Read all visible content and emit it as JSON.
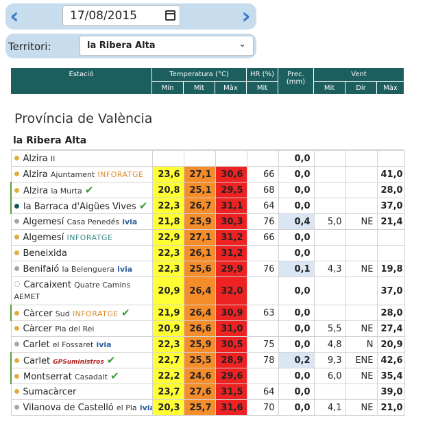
{
  "date_picker": {
    "value": "17/08/2015",
    "prev_icon": "chevron-left-icon",
    "next_icon": "chevron-right-icon",
    "calendar_icon": "calendar-icon"
  },
  "territory": {
    "label": "Territori:",
    "value": "la Ribera Alta",
    "dropdown_icon": "chevron-down-icon"
  },
  "headers": {
    "estacio": "Estació",
    "temperatura": "Temperatura (°C)",
    "hr": "HR (%)",
    "prec": "Prec. (mm)",
    "vent": "Vent",
    "min": "Mín",
    "mit": "Mit",
    "max": "Màx",
    "hr_mit": "Mit",
    "vent_mit": "Mit",
    "vent_dir": "Dir",
    "vent_max": "Màx"
  },
  "province": "Província de València",
  "comarca": "la Ribera Alta",
  "colors": {
    "header_bg": "#1d5f5f",
    "min_bg": "#ffff33",
    "mit_bg": "#f58d2b",
    "max_bg": "#ee2222",
    "dot_orange": "#e2ad3f",
    "dot_gray": "#a6a6a6",
    "dot_teal": "#125858",
    "check": "#3a9a3a",
    "prec_bg": "#dbe6f4",
    "infor": "#d9892b",
    "ivia_blue": "#2b5e9e"
  },
  "stations": [
    {
      "name": "Alzira",
      "sub": "II",
      "tag": "",
      "tag_color": "",
      "dot": "#e2ad3f",
      "check": false,
      "min": "",
      "mit": "",
      "max": "",
      "hr": "",
      "prec": "0,0",
      "vmit": "",
      "vdir": "",
      "vmax": ""
    },
    {
      "name": "Alzira",
      "sub": "Ajuntament",
      "tag": "INFORATGE",
      "tag_color": "#d9892b",
      "dot": "#e2ad3f",
      "check": false,
      "min": "23,6",
      "mit": "27,1",
      "max": "30,6",
      "hr": "66",
      "prec": "0,0",
      "vmit": "",
      "vdir": "",
      "vmax": "41,0"
    },
    {
      "name": "Alzira",
      "sub": "la Murta",
      "tag": "",
      "tag_color": "",
      "dot": "#e2ad3f",
      "check": true,
      "min": "20,8",
      "mit": "25,1",
      "max": "29,5",
      "hr": "68",
      "prec": "0,0",
      "vmit": "",
      "vdir": "",
      "vmax": "28,0"
    },
    {
      "name": "la Barraca d'Aigües Vives",
      "sub": "",
      "tag": "",
      "tag_color": "",
      "dot": "#125858",
      "check": true,
      "min": "22,3",
      "mit": "26,7",
      "max": "31,1",
      "hr": "64",
      "prec": "0,0",
      "vmit": "",
      "vdir": "",
      "vmax": "37,0"
    },
    {
      "name": "Algemesí",
      "sub": "Casa Penedés",
      "tag": "ivia",
      "tag_color": "#2b5e9e",
      "dot": "#a6a6a6",
      "check": false,
      "min": "21,8",
      "mit": "25,9",
      "max": "30,3",
      "hr": "76",
      "prec": "0,4",
      "vmit": "5,0",
      "vdir": "NE",
      "vmax": "21,4"
    },
    {
      "name": "Algemesí",
      "sub": "",
      "tag": "INFORATGE",
      "tag_color": "#3a8a8a",
      "dot": "#e2ad3f",
      "check": false,
      "min": "22,9",
      "mit": "27,1",
      "max": "31,2",
      "hr": "66",
      "prec": "0,0",
      "vmit": "",
      "vdir": "",
      "vmax": ""
    },
    {
      "name": "Beneixida",
      "sub": "",
      "tag": "",
      "tag_color": "",
      "dot": "#e2ad3f",
      "check": false,
      "min": "22,3",
      "mit": "26,1",
      "max": "31,2",
      "hr": "",
      "prec": "0,0",
      "vmit": "",
      "vdir": "",
      "vmax": ""
    },
    {
      "name": "Benifaió",
      "sub": "la Belenguera",
      "tag": "ivia",
      "tag_color": "#2b5e9e",
      "dot": "#a6a6a6",
      "check": false,
      "min": "22,3",
      "mit": "25,6",
      "max": "29,9",
      "hr": "76",
      "prec": "0,1",
      "vmit": "4,3",
      "vdir": "NE",
      "vmax": "19,8"
    },
    {
      "name": "Carcaixent",
      "sub": "Quatre Camins",
      "tag": "AEMET",
      "tag_color": "#333333",
      "dot": "#ffffff",
      "check": false,
      "min": "20,9",
      "mit": "26,4",
      "max": "32,0",
      "hr": "",
      "prec": "0,0",
      "vmit": "",
      "vdir": "",
      "vmax": "37,0"
    },
    {
      "name": "Càrcer",
      "sub": "Sud",
      "tag": "INFORATGE",
      "tag_color": "#d9892b",
      "dot": "#e2ad3f",
      "check": true,
      "min": "21,9",
      "mit": "26,4",
      "max": "30,9",
      "hr": "63",
      "prec": "0,0",
      "vmit": "",
      "vdir": "",
      "vmax": "28,0"
    },
    {
      "name": "Càrcer",
      "sub": "Pla del Rei",
      "tag": "",
      "tag_color": "",
      "dot": "#e2ad3f",
      "check": false,
      "min": "20,9",
      "mit": "26,6",
      "max": "31,0",
      "hr": "",
      "prec": "0,0",
      "vmit": "5,5",
      "vdir": "NE",
      "vmax": "27,4"
    },
    {
      "name": "Carlet",
      "sub": "el Fossaret",
      "tag": "ivia",
      "tag_color": "#2b5e9e",
      "dot": "#a6a6a6",
      "check": false,
      "min": "22,3",
      "mit": "25,9",
      "max": "30,5",
      "hr": "75",
      "prec": "0,0",
      "vmit": "4,8",
      "vdir": "N",
      "vmax": "20,9"
    },
    {
      "name": "Carlet",
      "sub": "",
      "tag": "GPSuministros",
      "tag_color": "#b01e1e",
      "dot": "#e2ad3f",
      "check": true,
      "min": "22,7",
      "mit": "25,5",
      "max": "28,9",
      "hr": "78",
      "prec": "0,2",
      "vmit": "9,3",
      "vdir": "ENE",
      "vmax": "42,6"
    },
    {
      "name": "Montserrat",
      "sub": "Casadalt",
      "tag": "",
      "tag_color": "",
      "dot": "#e2ad3f",
      "check": true,
      "min": "22,2",
      "mit": "24,6",
      "max": "29,6",
      "hr": "",
      "prec": "0,0",
      "vmit": "6,0",
      "vdir": "NE",
      "vmax": "35,4"
    },
    {
      "name": "Sumacàrcer",
      "sub": "",
      "tag": "",
      "tag_color": "",
      "dot": "#e2ad3f",
      "check": false,
      "min": "23,7",
      "mit": "27,6",
      "max": "31,5",
      "hr": "64",
      "prec": "0,0",
      "vmit": "",
      "vdir": "",
      "vmax": "39,0"
    },
    {
      "name": "Vilanova de Castelló",
      "sub": "el Pla",
      "tag": "ivia",
      "tag_color": "#2b5e9e",
      "dot": "#a6a6a6",
      "check": false,
      "min": "20,3",
      "mit": "25,7",
      "max": "31,6",
      "hr": "70",
      "prec": "0,0",
      "vmit": "4,1",
      "vdir": "NE",
      "vmax": "21,0"
    }
  ]
}
